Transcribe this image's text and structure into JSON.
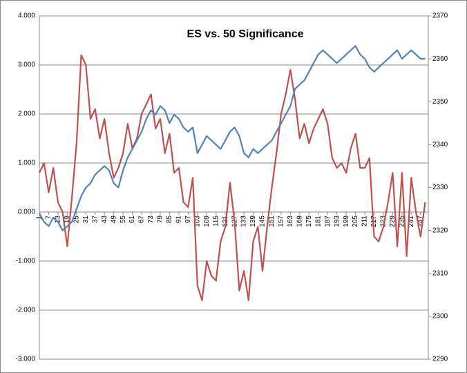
{
  "chart_data": {
    "type": "line",
    "title": "ES vs. 50 Significance",
    "x": [
      1,
      4,
      7,
      10,
      13,
      16,
      19,
      22,
      25,
      28,
      31,
      34,
      37,
      40,
      43,
      46,
      49,
      52,
      55,
      58,
      61,
      64,
      67,
      70,
      73,
      76,
      79,
      82,
      85,
      88,
      91,
      94,
      97,
      100,
      103,
      106,
      109,
      112,
      115,
      118,
      121,
      124,
      127,
      130,
      133,
      136,
      139,
      142,
      145,
      148,
      151,
      154,
      157,
      160,
      163,
      166,
      169,
      172,
      175,
      178,
      181,
      184,
      187,
      190,
      193,
      196,
      199,
      202,
      205,
      208,
      211,
      214,
      217,
      220,
      223,
      226,
      229,
      232,
      235,
      238,
      241,
      244,
      247,
      250
    ],
    "series": [
      {
        "color": "#c0504d",
        "values": [
          0.8,
          1.0,
          0.4,
          0.9,
          0.2,
          0.0,
          -0.7,
          0.3,
          1.4,
          3.2,
          3.0,
          1.9,
          2.1,
          1.5,
          1.9,
          1.2,
          0.7,
          0.9,
          1.2,
          1.8,
          1.3,
          1.5,
          2.0,
          2.2,
          2.4,
          1.7,
          1.9,
          1.2,
          1.6,
          0.8,
          0.9,
          0.2,
          0.1,
          0.7,
          -1.5,
          -1.8,
          -1.0,
          -1.3,
          -1.4,
          -0.6,
          -0.3,
          0.6,
          -0.2,
          -1.6,
          -1.2,
          -1.8,
          -0.6,
          -0.3,
          -1.2,
          -0.3,
          0.5,
          1.2,
          2.0,
          2.4,
          2.9,
          2.3,
          1.5,
          1.8,
          1.4,
          1.7,
          1.9,
          2.1,
          1.8,
          1.1,
          0.9,
          1.0,
          0.8,
          1.3,
          1.6,
          0.9,
          0.9,
          1.1,
          -0.5,
          -0.6,
          -0.3,
          0.2,
          0.8,
          -0.7,
          0.8,
          -0.9,
          0.7,
          0.0,
          -0.5,
          0.2
        ]
      },
      {
        "color": "#4f81bd",
        "axis": "y2",
        "values": [
          2324,
          2322,
          2321,
          2323,
          2322,
          2320,
          2321,
          2322,
          2325,
          2328,
          2330,
          2331,
          2333,
          2334,
          2335,
          2334,
          2331,
          2330,
          2334,
          2337,
          2339,
          2341,
          2343,
          2346,
          2348,
          2347,
          2349,
          2348,
          2345,
          2347,
          2346,
          2344,
          2343,
          2344,
          2338,
          2340,
          2342,
          2341,
          2340,
          2339,
          2341,
          2343,
          2344,
          2342,
          2338,
          2337,
          2339,
          2338,
          2339,
          2340,
          2341,
          2343,
          2345,
          2347,
          2349,
          2353,
          2354,
          2355,
          2357,
          2359,
          2361,
          2362,
          2361,
          2360,
          2359,
          2360,
          2361,
          2362,
          2363,
          2361,
          2360,
          2358,
          2357,
          2358,
          2359,
          2360,
          2361,
          2362,
          2360,
          2361,
          2362,
          2361,
          2360,
          2360
        ]
      }
    ],
    "xlim": [
      1,
      252
    ],
    "xticks": [
      1,
      7,
      13,
      19,
      25,
      31,
      37,
      43,
      49,
      55,
      61,
      67,
      73,
      79,
      85,
      91,
      97,
      103,
      109,
      115,
      121,
      127,
      133,
      139,
      145,
      151,
      157,
      163,
      169,
      175,
      181,
      187,
      193,
      199,
      205,
      211,
      217,
      223,
      229,
      235,
      241,
      247
    ],
    "ylim": [
      -3,
      4
    ],
    "yticks": [
      {
        "value": -3,
        "label": "-3.000"
      },
      {
        "value": -2,
        "label": "-2.000"
      },
      {
        "value": -1,
        "label": "-1.000"
      },
      {
        "value": 0,
        "label": "0.000"
      },
      {
        "value": 1,
        "label": "1.000"
      },
      {
        "value": 2,
        "label": "2.000"
      },
      {
        "value": 3,
        "label": "3.000"
      },
      {
        "value": 4,
        "label": "4.000"
      }
    ],
    "y2lim": [
      2290,
      2370
    ],
    "y2ticks": [
      2290,
      2300,
      2310,
      2320,
      2330,
      2340,
      2350,
      2360,
      2370
    ],
    "grid": true
  }
}
